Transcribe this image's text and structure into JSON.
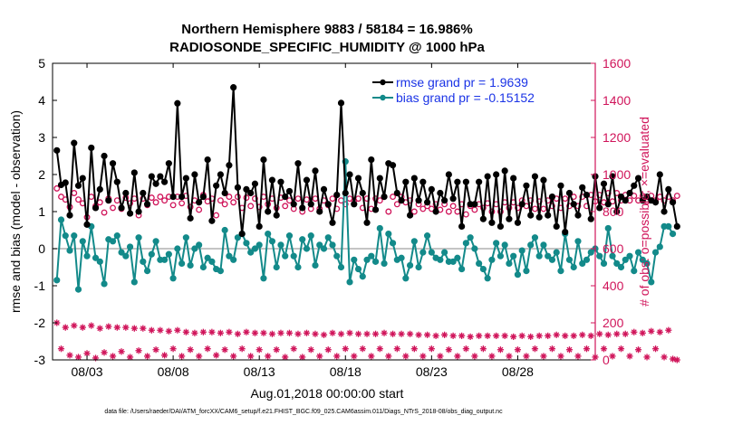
{
  "colors": {
    "rmse": "#000000",
    "bias": "#138a8a",
    "obs": "#d0145a",
    "legend_text": "#1a33e6",
    "zero_line": "#b0b0b0"
  },
  "chart_data": {
    "type": "line",
    "title": [
      "Northern Hemisphere 9883 / 58184 = 16.986%",
      "RADIOSONDE_SPECIFIC_HUMIDITY @ 1000 hPa"
    ],
    "xlabel": "Aug.01,2018 00:00:00 start",
    "ylabel_left": "rmse and bias (model - observation)",
    "ylabel_right": "# of obs: o=possible; ×=evaluated",
    "footnote": "data file: /Users/raeder/DAI/ATM_forcXX/CAM6_setup/f.e21.FHIST_BGC.f09_025.CAM6assim.011/Diags_NTrS_2018-08/obs_diag_output.nc",
    "xlim": [
      1.0,
      32.5
    ],
    "ylim_left": [
      -3,
      5
    ],
    "ylim_right": [
      0,
      1600
    ],
    "x_ticks": [
      3,
      8,
      13,
      18,
      23,
      28
    ],
    "x_tick_labels": [
      "08/03",
      "08/08",
      "08/13",
      "08/18",
      "08/23",
      "08/28"
    ],
    "y_left_ticks": [
      -3,
      -2,
      -1,
      0,
      1,
      2,
      3,
      4,
      5
    ],
    "y_right_ticks": [
      0,
      200,
      400,
      600,
      800,
      1000,
      1200,
      1400,
      1600
    ],
    "legend": [
      {
        "name": "rmse grand pr = 1.9639"
      },
      {
        "name": "bias grand pr = -0.15152"
      }
    ],
    "x_start": 1.25,
    "x_step": 0.25,
    "series": [
      {
        "name": "rmse",
        "axis": "left",
        "values": [
          2.65,
          1.72,
          1.78,
          0.9,
          2.85,
          1.7,
          1.9,
          0.65,
          2.72,
          1.1,
          1.6,
          2.5,
          1.3,
          2.3,
          1.8,
          1.1,
          1.5,
          0.95,
          2.05,
          1.0,
          1.5,
          1.2,
          1.95,
          1.75,
          1.95,
          1.8,
          2.3,
          1.4,
          3.92,
          1.4,
          1.9,
          0.82,
          2.0,
          1.25,
          1.4,
          2.4,
          0.75,
          1.7,
          2.0,
          1.5,
          2.25,
          4.35,
          1.65,
          0.4,
          1.6,
          1.5,
          1.75,
          0.6,
          2.4,
          1.0,
          1.85,
          0.9,
          1.8,
          1.4,
          1.55,
          1.2,
          2.3,
          1.1,
          1.85,
          1.2,
          2.1,
          1.0,
          1.6,
          1.2,
          0.7,
          1.45,
          3.93,
          1.5,
          2.0,
          1.2,
          1.9,
          1.5,
          0.7,
          2.4,
          1.05,
          1.9,
          1.4,
          2.3,
          2.25,
          1.5,
          1.3,
          1.8,
          0.9,
          1.9,
          1.3,
          1.8,
          1.25,
          1.6,
          1.0,
          1.5,
          1.3,
          2.0,
          1.35,
          1.8,
          0.6,
          1.8,
          1.2,
          1.2,
          1.8,
          0.8,
          1.95,
          0.7,
          2.0,
          0.6,
          2.1,
          0.8,
          1.9,
          0.7,
          1.2,
          1.7,
          0.9,
          1.95,
          0.85,
          1.85,
          0.9,
          1.4,
          0.6,
          1.7,
          0.45,
          1.5,
          1.2,
          0.9,
          1.65,
          1.45,
          0.8,
          1.95,
          1.1,
          1.75,
          1.2,
          1.95,
          1.0,
          1.4,
          1.3,
          1.5,
          1.7,
          1.9,
          1.3,
          1.4,
          1.3,
          1.25,
          2.0,
          1.0,
          1.6,
          1.25,
          0.6
        ]
      },
      {
        "name": "bias",
        "axis": "left",
        "values": [
          -0.85,
          0.78,
          0.35,
          -0.05,
          0.35,
          -1.1,
          0.2,
          -0.2,
          0.6,
          -0.25,
          -0.35,
          -0.95,
          0.25,
          0.2,
          0.35,
          -0.1,
          -0.2,
          0.05,
          -0.9,
          0.3,
          -0.35,
          -0.6,
          -0.15,
          0.2,
          -0.3,
          -0.3,
          -0.15,
          -0.8,
          0.0,
          -0.4,
          0.3,
          -0.45,
          0.0,
          0.1,
          -0.5,
          -0.25,
          -0.35,
          -0.55,
          -0.6,
          0.5,
          -0.2,
          -0.3,
          0.3,
          0.4,
          0.15,
          -0.1,
          0.0,
          0.1,
          -0.8,
          0.4,
          0.2,
          -0.5,
          0.1,
          -0.2,
          0.35,
          -0.2,
          -0.5,
          0.25,
          0.0,
          0.35,
          -0.45,
          0.1,
          0.0,
          0.3,
          0.1,
          -0.2,
          -0.5,
          2.35,
          -0.9,
          -0.3,
          -0.55,
          -0.75,
          -0.3,
          -0.2,
          -0.35,
          0.55,
          -0.4,
          0.4,
          0.15,
          -0.3,
          -0.25,
          -0.8,
          -0.45,
          0.2,
          -0.5,
          -0.1,
          0.35,
          -0.1,
          -0.25,
          -0.3,
          -0.1,
          -0.35,
          -0.35,
          -0.25,
          -0.55,
          0.15,
          0.3,
          0.0,
          -0.4,
          -0.55,
          -0.8,
          -0.3,
          0.15,
          -0.2,
          0.1,
          -0.4,
          -0.2,
          -0.7,
          -0.05,
          -0.6,
          0.1,
          0.3,
          -0.2,
          0.1,
          -0.2,
          -0.3,
          -0.1,
          -0.6,
          0.4,
          -0.3,
          -0.5,
          0.2,
          -0.4,
          -0.3,
          -0.1,
          0.0,
          -0.2,
          -0.4,
          0.55,
          -0.2,
          -0.4,
          -0.5,
          -0.3,
          -0.2,
          -0.6,
          -0.1,
          -0.3,
          -0.4,
          -0.9,
          -0.1,
          0.05,
          0.6,
          0.6,
          0.4
        ]
      },
      {
        "name": "obs_possible",
        "axis": "right",
        "values": [
          925,
          880,
          865,
          825,
          900,
          865,
          845,
          770,
          880,
          830,
          850,
          795,
          870,
          820,
          860,
          815,
          875,
          845,
          870,
          780,
          870,
          835,
          875,
          850,
          880,
          860,
          880,
          835,
          880,
          845,
          885,
          825,
          860,
          810,
          890,
          855,
          870,
          780,
          860,
          840,
          880,
          850,
          880,
          820,
          875,
          830,
          870,
          825,
          880,
          840,
          870,
          820,
          875,
          830,
          860,
          815,
          870,
          800,
          865,
          815,
          870,
          815,
          860,
          835,
          870,
          815,
          860,
          840,
          870,
          860,
          870,
          820,
          870,
          815,
          870,
          860,
          880,
          800,
          880,
          840,
          880,
          850,
          860,
          800,
          840,
          815,
          830,
          815,
          840,
          810,
          840,
          800,
          830,
          800,
          840,
          785,
          830,
          810,
          840,
          820,
          845,
          800,
          840,
          800,
          850,
          820,
          850,
          820,
          860,
          830,
          860,
          815,
          855,
          815,
          860,
          830,
          870,
          820,
          870,
          830,
          880,
          830,
          880,
          830,
          890,
          855,
          890,
          850,
          900,
          855,
          900,
          860,
          890,
          860,
          885,
          860,
          885,
          855,
          885,
          860,
          880,
          860,
          880,
          860,
          885
        ]
      },
      {
        "name": "obs_evaluated",
        "axis": "right",
        "values": [
          200,
          60,
          175,
          25,
          185,
          15,
          175,
          35,
          185,
          10,
          170,
          40,
          180,
          20,
          175,
          45,
          175,
          15,
          170,
          50,
          170,
          20,
          160,
          55,
          160,
          25,
          155,
          60,
          160,
          20,
          150,
          55,
          145,
          20,
          150,
          60,
          150,
          25,
          145,
          55,
          150,
          20,
          140,
          60,
          150,
          20,
          145,
          55,
          145,
          20,
          140,
          55,
          145,
          15,
          145,
          60,
          140,
          15,
          145,
          55,
          140,
          20,
          135,
          55,
          145,
          20,
          140,
          60,
          145,
          20,
          140,
          60,
          140,
          20,
          140,
          60,
          145,
          20,
          140,
          60,
          140,
          20,
          140,
          60,
          135,
          20,
          135,
          60,
          130,
          20,
          135,
          55,
          130,
          20,
          130,
          60,
          125,
          20,
          130,
          60,
          130,
          20,
          130,
          55,
          130,
          20,
          125,
          55,
          130,
          20,
          125,
          60,
          130,
          20,
          130,
          60,
          135,
          20,
          130,
          55,
          130,
          20,
          135,
          60,
          130,
          15,
          140,
          60,
          135,
          20,
          140,
          60,
          140,
          20,
          150,
          55,
          145,
          15,
          155,
          60,
          150,
          15,
          160,
          5,
          0
        ]
      }
    ]
  }
}
